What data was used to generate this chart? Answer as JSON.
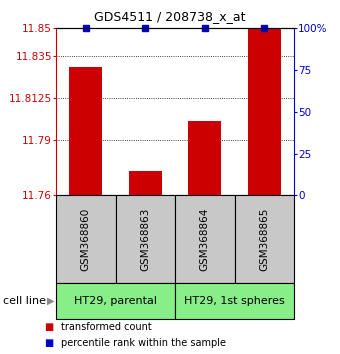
{
  "title": "GDS4511 / 208738_x_at",
  "samples": [
    "GSM368860",
    "GSM368863",
    "GSM368864",
    "GSM368865"
  ],
  "red_values": [
    11.829,
    11.773,
    11.8,
    11.85
  ],
  "blue_percentiles": [
    100,
    100,
    100,
    100
  ],
  "y_min": 11.76,
  "y_max": 11.85,
  "y_ticks_left": [
    11.76,
    11.79,
    11.8125,
    11.835,
    11.85
  ],
  "y_ticks_right": [
    0,
    25,
    50,
    75,
    100
  ],
  "cell_line_groups": [
    {
      "label": "HT29, parental",
      "start": 0,
      "end": 2,
      "color": "#88ee88"
    },
    {
      "label": "HT29, 1st spheres",
      "start": 2,
      "end": 4,
      "color": "#88ee88"
    }
  ],
  "bar_color": "#cc0000",
  "blue_color": "#0000cc",
  "sample_box_color": "#c8c8c8",
  "title_fontsize": 9.0,
  "tick_fontsize": 7.5,
  "sample_fontsize": 7.5,
  "cell_fontsize": 8.0,
  "legend_fontsize": 7.0,
  "bar_width": 0.55
}
